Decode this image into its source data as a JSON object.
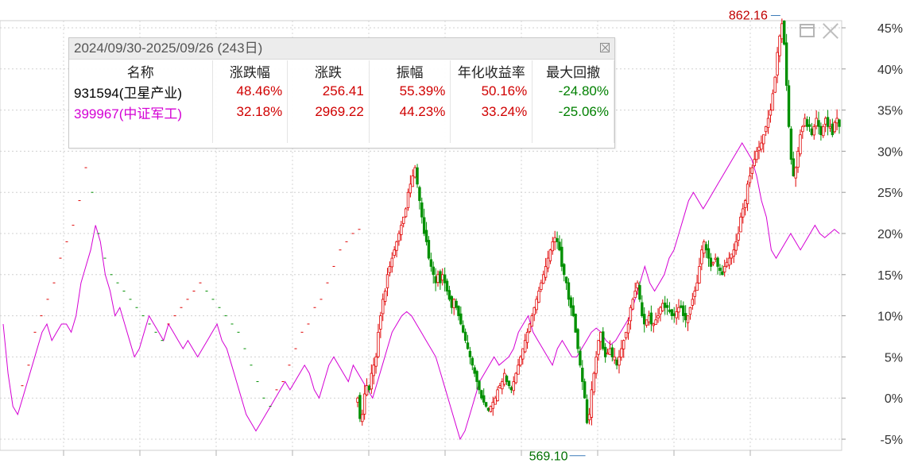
{
  "stats": {
    "period": "2024/09/30-2025/09/26 (243日)",
    "headers": [
      "名称",
      "涨跌幅",
      "涨跌",
      "振幅",
      "年化收益率",
      "最大回撤"
    ],
    "rows": [
      {
        "name": "931594(卫星产业)",
        "change_pct": "48.46%",
        "change": "256.41",
        "amplitude": "55.39%",
        "annualized": "50.16%",
        "max_drawdown": "-24.80%",
        "name_color": "#000000"
      },
      {
        "name": "399967(中证军工)",
        "change_pct": "32.18%",
        "change": "2969.22",
        "amplitude": "44.23%",
        "annualized": "33.24%",
        "max_drawdown": "-25.06%",
        "name_color": "#d400d4"
      }
    ]
  },
  "chart_data": {
    "type": "line",
    "y_tick_labels": [
      "45%",
      "40%",
      "35%",
      "30%",
      "25%",
      "20%",
      "15%",
      "10%",
      "5%",
      "0%",
      "-5%"
    ],
    "ylim": [
      -5,
      45
    ],
    "high_label": "862.16",
    "low_label": "569.10",
    "colors": {
      "up": "#e00000",
      "down": "#009000",
      "benchmark": "#d400d4",
      "high_label": "#c00000",
      "low_label": "#007000"
    },
    "series": [
      {
        "name": "931594(卫星产业)",
        "render": "candlestick",
        "close_pct": [
          0,
          -2.5,
          -2,
          0.5,
          1.5,
          1,
          3,
          4,
          5,
          8,
          10,
          12,
          13,
          15,
          16,
          17,
          18,
          19,
          20,
          21,
          22,
          23,
          25,
          26,
          27,
          28,
          26,
          24,
          22,
          20,
          19,
          17,
          16,
          15,
          14,
          15,
          14,
          15,
          14,
          13,
          12,
          11,
          12,
          11,
          10,
          9,
          8,
          7,
          6,
          5,
          4,
          3,
          2,
          1,
          0,
          -0.5,
          -1,
          -1.5,
          -1,
          -0.5,
          0,
          1,
          1.5,
          2,
          3,
          2,
          1.5,
          1,
          2,
          3,
          4,
          5,
          6,
          7,
          8,
          9,
          10,
          11,
          12,
          13,
          14,
          15,
          16,
          17,
          18,
          19,
          19.5,
          19,
          18,
          16,
          15,
          14,
          12,
          11,
          10,
          8,
          6,
          4,
          2,
          0,
          -3,
          -2,
          1,
          3,
          5,
          7,
          8,
          6,
          5,
          5.5,
          6,
          5,
          5,
          4,
          5,
          6,
          7,
          8,
          9,
          11,
          12,
          13,
          14,
          12,
          10,
          9,
          9.5,
          10,
          9,
          9,
          9.5,
          10,
          11,
          11.5,
          11,
          11,
          10.5,
          10,
          10,
          10.5,
          11,
          11,
          10,
          9.5,
          10,
          11,
          12,
          13,
          14,
          16,
          18,
          19,
          18,
          17,
          16,
          16.5,
          17,
          16,
          15.5,
          15,
          16,
          16.5,
          17,
          17.5,
          18,
          19,
          20,
          22,
          23,
          24,
          26,
          27,
          28,
          29,
          30,
          30.5,
          31,
          32,
          33,
          34,
          35,
          37,
          39,
          42,
          44,
          45.5,
          43,
          38,
          33,
          29,
          27,
          28,
          30,
          32,
          33,
          34,
          33,
          33,
          32,
          33,
          34,
          33,
          32,
          33,
          34,
          33,
          33,
          32,
          33.5,
          34,
          33
        ]
      },
      {
        "name": "399967(中证军工)",
        "render": "line",
        "values_pct": [
          9,
          3,
          -1,
          -2,
          0,
          2,
          4,
          6,
          8,
          9,
          7,
          8,
          9,
          9,
          8,
          10,
          14,
          16,
          18,
          21,
          19,
          15,
          13,
          10,
          11,
          9,
          7,
          5,
          6,
          8,
          10,
          9,
          8,
          7,
          9,
          8,
          7,
          6,
          7,
          6,
          5,
          6,
          7,
          8,
          9,
          7,
          6,
          4,
          2,
          0,
          -2,
          -3,
          -4,
          -3,
          -2,
          -1,
          0,
          1,
          2,
          1,
          2,
          3,
          4,
          3,
          1,
          0,
          2,
          4,
          5,
          4,
          3,
          2,
          4,
          3,
          2,
          1,
          0,
          2,
          4,
          6,
          8,
          9,
          10,
          10.5,
          10,
          9,
          8,
          7,
          6,
          5,
          3,
          1,
          -1,
          -3,
          -5,
          -4,
          -2,
          0,
          2,
          3,
          4,
          5,
          4,
          4.5,
          5,
          6,
          8,
          9,
          10,
          8,
          7,
          6,
          5,
          4,
          6,
          7,
          6,
          5,
          5,
          6,
          7,
          8,
          8.5,
          8,
          7,
          6.5,
          7,
          8,
          9,
          10,
          12,
          14,
          16,
          14,
          13,
          14,
          15,
          17,
          18,
          20,
          22,
          24,
          25,
          24,
          23,
          24,
          25,
          26,
          27,
          28,
          29,
          30,
          31,
          30,
          29,
          27,
          24,
          22,
          18,
          17,
          18,
          19,
          20,
          19,
          18,
          19,
          20,
          21,
          20,
          19.5,
          20,
          20.5,
          20
        ]
      }
    ]
  }
}
